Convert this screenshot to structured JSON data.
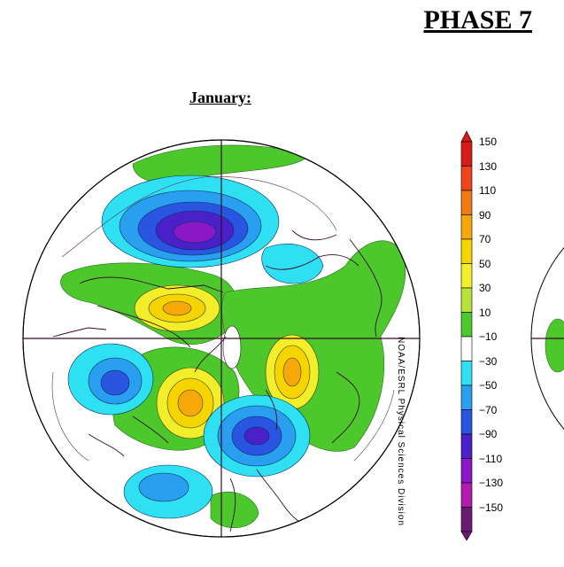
{
  "header": {
    "phase_title": "PHASE 7"
  },
  "map": {
    "month_label": "January:",
    "credit_text": "NOAA/ESRL Physical Sciences Division"
  },
  "colorbar": {
    "labels": [
      "150",
      "130",
      "110",
      "90",
      "70",
      "50",
      "30",
      "10",
      "−10",
      "−30",
      "−50",
      "−70",
      "−90",
      "−110",
      "−130",
      "−150"
    ],
    "colors": [
      "#d91a1a",
      "#f0441a",
      "#f27a14",
      "#f6a80a",
      "#f5d400",
      "#f2ee2a",
      "#b7e23a",
      "#4cc72c",
      "#ffffff",
      "#2fe0f2",
      "#2a9ff0",
      "#2a55e0",
      "#4a20c8",
      "#8a18c8",
      "#b21ab0",
      "#6a1a70"
    ]
  },
  "colors": {
    "land_outline": "#3a0a2a",
    "positive_green": "#4cc72c",
    "negative_cyan": "#2fe0f2",
    "negative_purple": "#4a20c8"
  }
}
